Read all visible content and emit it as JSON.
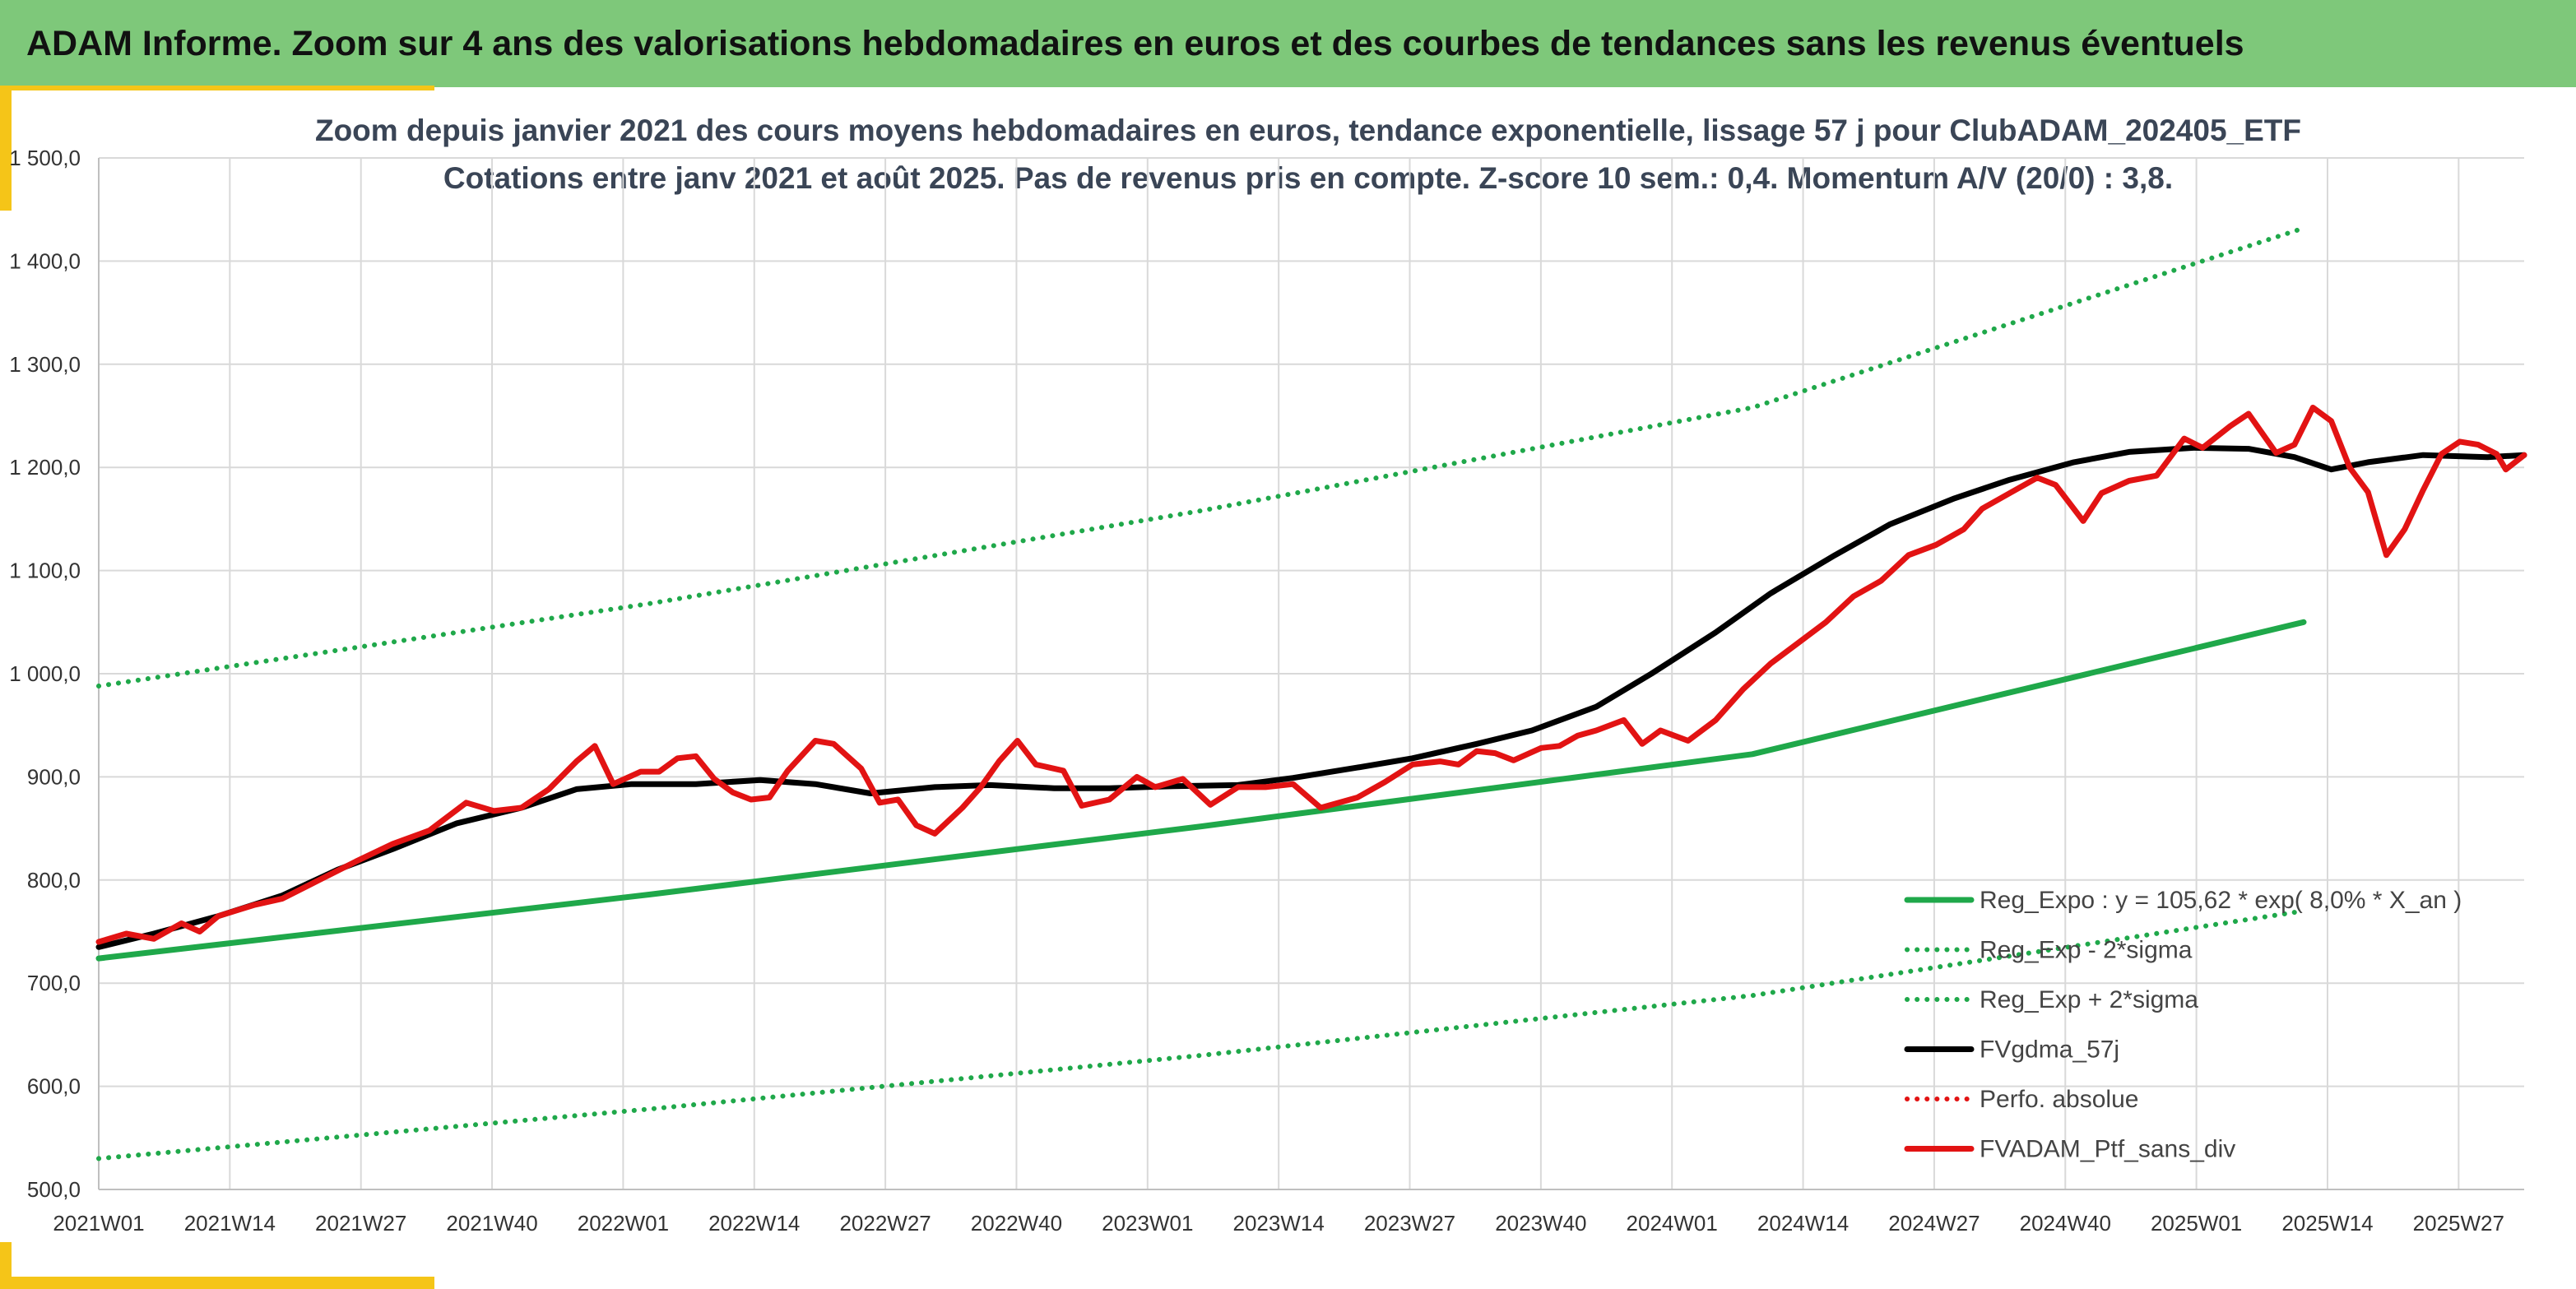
{
  "banner": {
    "title": "ADAM Informe. Zoom sur 4 ans des valorisations hebdomadaires en euros et des courbes de tendances sans les revenus éventuels"
  },
  "chart_data": {
    "type": "line",
    "title": "Zoom depuis janvier 2021 des cours moyens hebdomadaires en euros, tendance exponentielle, lissage 57 j pour ClubADAM_202405_ETF",
    "subtitle": "Cotations entre janv 2021 et août 2025. Pas de revenus pris en compte. Z-score 10 sem.: 0,4. Momentum A/V (20/0) : 3,8.",
    "xlabel": "",
    "ylabel": "",
    "ylim": [
      500,
      1500
    ],
    "y_ticks": [
      "500,0",
      "600,0",
      "700,0",
      "800,0",
      "900,0",
      "1 000,0",
      "1 100,0",
      "1 200,0",
      "1 300,0",
      "1 400,0",
      "1 500,0"
    ],
    "x_ticks": [
      "2021W01",
      "2021W14",
      "2021W27",
      "2021W40",
      "2022W01",
      "2022W14",
      "2022W27",
      "2022W40",
      "2023W01",
      "2023W14",
      "2023W27",
      "2023W40",
      "2024W01",
      "2024W14",
      "2024W27",
      "2024W40",
      "2025W01",
      "2025W14",
      "2025W27"
    ],
    "x_range_weeks": [
      0,
      241
    ],
    "grid": true,
    "legend_position": "bottom-right",
    "series": [
      {
        "name": "Reg_Expo : y = 105,62 * exp( 8,0% *  X_an )",
        "color": "#1fa84a",
        "style": "solid",
        "points": [
          [
            0,
            724
          ],
          [
            60,
            786
          ],
          [
            120,
            852
          ],
          [
            180,
            922
          ],
          [
            240,
            1050
          ]
        ]
      },
      {
        "name": "Reg_Exp - 2*sigma",
        "color": "#1fa84a",
        "style": "dotted",
        "points": [
          [
            0,
            530
          ],
          [
            60,
            578
          ],
          [
            120,
            630
          ],
          [
            180,
            688
          ],
          [
            240,
            770
          ]
        ]
      },
      {
        "name": "Reg_Exp + 2*sigma",
        "color": "#1fa84a",
        "style": "dotted",
        "points": [
          [
            0,
            988
          ],
          [
            60,
            1068
          ],
          [
            120,
            1158
          ],
          [
            180,
            1258
          ],
          [
            240,
            1432
          ]
        ]
      },
      {
        "name": "FVgdma_57j",
        "color": "#000000",
        "style": "solid",
        "points": [
          [
            0,
            735
          ],
          [
            6,
            748
          ],
          [
            13,
            765
          ],
          [
            20,
            785
          ],
          [
            26,
            810
          ],
          [
            32,
            830
          ],
          [
            39,
            855
          ],
          [
            46,
            870
          ],
          [
            52,
            888
          ],
          [
            58,
            893
          ],
          [
            65,
            893
          ],
          [
            72,
            897
          ],
          [
            78,
            893
          ],
          [
            84,
            884
          ],
          [
            91,
            890
          ],
          [
            97,
            892
          ],
          [
            104,
            889
          ],
          [
            110,
            889
          ],
          [
            117,
            891
          ],
          [
            124,
            892
          ],
          [
            130,
            899
          ],
          [
            137,
            909
          ],
          [
            143,
            918
          ],
          [
            150,
            932
          ],
          [
            156,
            945
          ],
          [
            163,
            968
          ],
          [
            169,
            1000
          ],
          [
            176,
            1040
          ],
          [
            182,
            1078
          ],
          [
            189,
            1115
          ],
          [
            195,
            1145
          ],
          [
            202,
            1170
          ],
          [
            208,
            1188
          ],
          [
            215,
            1205
          ],
          [
            221,
            1215
          ],
          [
            228,
            1219
          ],
          [
            234,
            1218
          ],
          [
            239,
            1210
          ],
          [
            243,
            1198
          ],
          [
            247,
            1205
          ],
          [
            253,
            1212
          ],
          [
            260,
            1210
          ],
          [
            264,
            1212
          ]
        ]
      },
      {
        "name": "Perfo. absolue",
        "color": "#e21313",
        "style": "dotted",
        "points": []
      },
      {
        "name": "FVADAM_Ptf_sans_div",
        "color": "#e21313",
        "style": "solid",
        "points": [
          [
            0,
            740
          ],
          [
            3,
            748
          ],
          [
            6,
            743
          ],
          [
            9,
            758
          ],
          [
            11,
            750
          ],
          [
            13,
            765
          ],
          [
            17,
            776
          ],
          [
            20,
            782
          ],
          [
            24,
            800
          ],
          [
            28,
            818
          ],
          [
            32,
            835
          ],
          [
            36,
            848
          ],
          [
            40,
            875
          ],
          [
            43,
            867
          ],
          [
            46,
            870
          ],
          [
            49,
            888
          ],
          [
            52,
            915
          ],
          [
            54,
            930
          ],
          [
            56,
            893
          ],
          [
            59,
            905
          ],
          [
            61,
            905
          ],
          [
            63,
            918
          ],
          [
            65,
            920
          ],
          [
            67,
            898
          ],
          [
            69,
            885
          ],
          [
            71,
            878
          ],
          [
            73,
            880
          ],
          [
            75,
            906
          ],
          [
            78,
            935
          ],
          [
            80,
            932
          ],
          [
            83,
            908
          ],
          [
            85,
            875
          ],
          [
            87,
            878
          ],
          [
            89,
            853
          ],
          [
            91,
            845
          ],
          [
            94,
            870
          ],
          [
            96,
            890
          ],
          [
            98,
            915
          ],
          [
            100,
            935
          ],
          [
            102,
            912
          ],
          [
            105,
            906
          ],
          [
            107,
            872
          ],
          [
            110,
            878
          ],
          [
            113,
            900
          ],
          [
            115,
            890
          ],
          [
            118,
            898
          ],
          [
            121,
            873
          ],
          [
            124,
            890
          ],
          [
            127,
            890
          ],
          [
            130,
            893
          ],
          [
            133,
            870
          ],
          [
            137,
            880
          ],
          [
            140,
            895
          ],
          [
            143,
            912
          ],
          [
            146,
            915
          ],
          [
            148,
            912
          ],
          [
            150,
            925
          ],
          [
            152,
            923
          ],
          [
            154,
            916
          ],
          [
            157,
            928
          ],
          [
            159,
            930
          ],
          [
            161,
            940
          ],
          [
            163,
            945
          ],
          [
            166,
            955
          ],
          [
            168,
            932
          ],
          [
            170,
            945
          ],
          [
            173,
            935
          ],
          [
            176,
            955
          ],
          [
            179,
            985
          ],
          [
            182,
            1010
          ],
          [
            185,
            1030
          ],
          [
            188,
            1050
          ],
          [
            191,
            1075
          ],
          [
            194,
            1090
          ],
          [
            197,
            1115
          ],
          [
            200,
            1125
          ],
          [
            203,
            1140
          ],
          [
            205,
            1160
          ],
          [
            208,
            1175
          ],
          [
            211,
            1190
          ],
          [
            213,
            1183
          ],
          [
            216,
            1148
          ],
          [
            218,
            1175
          ],
          [
            221,
            1187
          ],
          [
            224,
            1192
          ],
          [
            227,
            1228
          ],
          [
            229,
            1219
          ],
          [
            232,
            1240
          ],
          [
            234,
            1252
          ],
          [
            237,
            1214
          ],
          [
            239,
            1222
          ],
          [
            241,
            1258
          ],
          [
            243,
            1245
          ],
          [
            245,
            1200
          ],
          [
            247,
            1176
          ],
          [
            249,
            1115
          ],
          [
            251,
            1140
          ],
          [
            253,
            1178
          ],
          [
            255,
            1213
          ],
          [
            257,
            1225
          ],
          [
            259,
            1222
          ],
          [
            261,
            1213
          ],
          [
            262,
            1198
          ],
          [
            264,
            1212
          ]
        ]
      }
    ]
  }
}
